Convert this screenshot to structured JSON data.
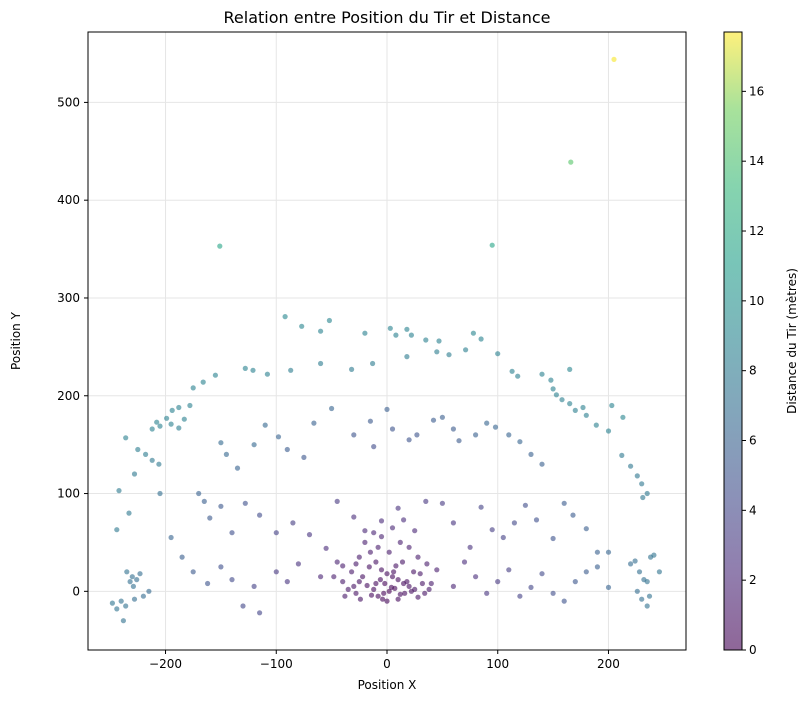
{
  "chart_data": {
    "type": "scatter",
    "title": "Relation entre Position du Tir et Distance",
    "xlabel": "Position X",
    "ylabel": "Position Y",
    "xlim": [
      -270,
      270
    ],
    "ylim": [
      -60,
      572
    ],
    "xticks": [
      -200,
      -100,
      0,
      100,
      200
    ],
    "yticks": [
      0,
      100,
      200,
      300,
      400,
      500
    ],
    "grid": true,
    "colormap": "viridis",
    "colorbar": {
      "label": "Distance du Tir (mètres)",
      "range": [
        0,
        17.7
      ],
      "ticks": [
        0,
        2,
        4,
        6,
        8,
        10,
        12,
        14,
        16
      ]
    },
    "point_alpha": 0.6,
    "points": [
      [
        205,
        544
      ],
      [
        166,
        439
      ],
      [
        95,
        354
      ],
      [
        -151,
        353
      ],
      [
        -92,
        281
      ],
      [
        -52,
        277
      ],
      [
        -77,
        271
      ],
      [
        -60,
        266
      ],
      [
        -20,
        264
      ],
      [
        3,
        269
      ],
      [
        8,
        262
      ],
      [
        18,
        268
      ],
      [
        22,
        262
      ],
      [
        35,
        257
      ],
      [
        47,
        256
      ],
      [
        78,
        264
      ],
      [
        85,
        258
      ],
      [
        -128,
        228
      ],
      [
        -121,
        226
      ],
      [
        -108,
        222
      ],
      [
        -87,
        226
      ],
      [
        -60,
        233
      ],
      [
        -32,
        227
      ],
      [
        -13,
        233
      ],
      [
        18,
        240
      ],
      [
        45,
        245
      ],
      [
        56,
        242
      ],
      [
        71,
        247
      ],
      [
        100,
        243
      ],
      [
        113,
        225
      ],
      [
        118,
        220
      ],
      [
        140,
        222
      ],
      [
        148,
        216
      ],
      [
        165,
        227
      ],
      [
        -155,
        221
      ],
      [
        -166,
        214
      ],
      [
        -175,
        208
      ],
      [
        -178,
        190
      ],
      [
        -188,
        188
      ],
      [
        -194,
        185
      ],
      [
        -183,
        176
      ],
      [
        -195,
        171
      ],
      [
        -199,
        177
      ],
      [
        -205,
        169
      ],
      [
        -208,
        173
      ],
      [
        -212,
        166
      ],
      [
        -188,
        167
      ],
      [
        150,
        207
      ],
      [
        153,
        201
      ],
      [
        158,
        196
      ],
      [
        165,
        192
      ],
      [
        170,
        185
      ],
      [
        177,
        188
      ],
      [
        180,
        180
      ],
      [
        189,
        170
      ],
      [
        200,
        164
      ],
      [
        203,
        190
      ],
      [
        213,
        178
      ],
      [
        -225,
        145
      ],
      [
        -218,
        140
      ],
      [
        -212,
        134
      ],
      [
        -206,
        130
      ],
      [
        -236,
        157
      ],
      [
        -242,
        103
      ],
      [
        -228,
        120
      ],
      [
        -233,
        80
      ],
      [
        -244,
        63
      ],
      [
        212,
        139
      ],
      [
        220,
        128
      ],
      [
        226,
        118
      ],
      [
        230,
        110
      ],
      [
        235,
        100
      ],
      [
        231,
        96
      ],
      [
        -150,
        152
      ],
      [
        -145,
        140
      ],
      [
        -135,
        126
      ],
      [
        -120,
        150
      ],
      [
        -110,
        170
      ],
      [
        -98,
        158
      ],
      [
        -90,
        145
      ],
      [
        -75,
        137
      ],
      [
        -66,
        172
      ],
      [
        -50,
        187
      ],
      [
        -30,
        160
      ],
      [
        -15,
        174
      ],
      [
        -12,
        148
      ],
      [
        0,
        186
      ],
      [
        5,
        166
      ],
      [
        20,
        155
      ],
      [
        27,
        160
      ],
      [
        42,
        175
      ],
      [
        50,
        178
      ],
      [
        60,
        166
      ],
      [
        65,
        154
      ],
      [
        80,
        160
      ],
      [
        90,
        172
      ],
      [
        98,
        168
      ],
      [
        110,
        160
      ],
      [
        120,
        153
      ],
      [
        130,
        140
      ],
      [
        140,
        130
      ],
      [
        -170,
        100
      ],
      [
        -165,
        92
      ],
      [
        -160,
        75
      ],
      [
        -150,
        87
      ],
      [
        -140,
        60
      ],
      [
        -128,
        90
      ],
      [
        -115,
        78
      ],
      [
        -100,
        60
      ],
      [
        -85,
        70
      ],
      [
        -70,
        58
      ],
      [
        -55,
        44
      ],
      [
        -45,
        92
      ],
      [
        -30,
        76
      ],
      [
        -20,
        62
      ],
      [
        -5,
        56
      ],
      [
        10,
        85
      ],
      [
        15,
        73
      ],
      [
        25,
        62
      ],
      [
        35,
        92
      ],
      [
        50,
        90
      ],
      [
        60,
        70
      ],
      [
        75,
        45
      ],
      [
        85,
        86
      ],
      [
        95,
        63
      ],
      [
        105,
        55
      ],
      [
        115,
        70
      ],
      [
        125,
        88
      ],
      [
        135,
        73
      ],
      [
        150,
        54
      ],
      [
        160,
        90
      ],
      [
        168,
        78
      ],
      [
        180,
        64
      ],
      [
        190,
        40
      ],
      [
        200,
        40
      ],
      [
        -205,
        100
      ],
      [
        -195,
        55
      ],
      [
        -185,
        35
      ],
      [
        -175,
        20
      ],
      [
        -162,
        8
      ],
      [
        -150,
        25
      ],
      [
        -140,
        12
      ],
      [
        -130,
        -15
      ],
      [
        -120,
        5
      ],
      [
        -115,
        -22
      ],
      [
        -100,
        20
      ],
      [
        -90,
        10
      ],
      [
        -80,
        28
      ],
      [
        -60,
        15
      ],
      [
        -40,
        26
      ],
      [
        -25,
        35
      ],
      [
        170,
        10
      ],
      [
        180,
        20
      ],
      [
        190,
        25
      ],
      [
        200,
        4
      ],
      [
        160,
        -10
      ],
      [
        150,
        -2
      ],
      [
        140,
        18
      ],
      [
        130,
        4
      ],
      [
        120,
        -5
      ],
      [
        110,
        22
      ],
      [
        100,
        10
      ],
      [
        90,
        -2
      ],
      [
        80,
        15
      ],
      [
        70,
        30
      ],
      [
        60,
        5
      ],
      [
        45,
        22
      ],
      [
        40,
        8
      ],
      [
        -235,
        20
      ],
      [
        -232,
        10
      ],
      [
        -230,
        15
      ],
      [
        -226,
        12
      ],
      [
        -223,
        18
      ],
      [
        -229,
        5
      ],
      [
        -236,
        -15
      ],
      [
        -240,
        -10
      ],
      [
        -238,
        -30
      ],
      [
        -220,
        -5
      ],
      [
        -228,
        -8
      ],
      [
        -244,
        -18
      ],
      [
        -248,
        -12
      ],
      [
        -215,
        0
      ],
      [
        220,
        28
      ],
      [
        224,
        31
      ],
      [
        228,
        20
      ],
      [
        232,
        12
      ],
      [
        230,
        -8
      ],
      [
        235,
        -15
      ],
      [
        238,
        35
      ],
      [
        241,
        37
      ],
      [
        246,
        20
      ],
      [
        226,
        0
      ],
      [
        235,
        10
      ],
      [
        237,
        -5
      ],
      [
        -20,
        50
      ],
      [
        -15,
        40
      ],
      [
        -10,
        30
      ],
      [
        -5,
        22
      ],
      [
        0,
        18
      ],
      [
        5,
        15
      ],
      [
        10,
        12
      ],
      [
        15,
        8
      ],
      [
        20,
        5
      ],
      [
        25,
        2
      ],
      [
        -25,
        10
      ],
      [
        -30,
        5
      ],
      [
        -35,
        2
      ],
      [
        -28,
        -2
      ],
      [
        -22,
        15
      ],
      [
        -18,
        6
      ],
      [
        -12,
        2
      ],
      [
        -8,
        -5
      ],
      [
        -3,
        -2
      ],
      [
        2,
        0
      ],
      [
        7,
        3
      ],
      [
        12,
        -3
      ],
      [
        18,
        10
      ],
      [
        22,
        0
      ],
      [
        28,
        -6
      ],
      [
        32,
        8
      ],
      [
        38,
        2
      ],
      [
        -40,
        10
      ],
      [
        -45,
        30
      ],
      [
        -48,
        15
      ],
      [
        -12,
        60
      ],
      [
        -5,
        72
      ],
      [
        5,
        65
      ],
      [
        12,
        50
      ],
      [
        20,
        45
      ],
      [
        28,
        35
      ],
      [
        -28,
        28
      ],
      [
        -8,
        45
      ],
      [
        2,
        40
      ],
      [
        8,
        26
      ],
      [
        14,
        30
      ],
      [
        -16,
        25
      ],
      [
        -2,
        8
      ],
      [
        4,
        4
      ],
      [
        10,
        -8
      ],
      [
        -6,
        12
      ],
      [
        -14,
        -4
      ],
      [
        24,
        20
      ],
      [
        30,
        18
      ],
      [
        36,
        28
      ],
      [
        -32,
        20
      ],
      [
        -38,
        -5
      ],
      [
        16,
        -2
      ],
      [
        0,
        -10
      ],
      [
        -10,
        8
      ],
      [
        6,
        20
      ],
      [
        -4,
        -8
      ],
      [
        34,
        -2
      ],
      [
        -24,
        -8
      ]
    ],
    "values": [
      17.6,
      14.5,
      11.6,
      11.6,
      9.2,
      9.0,
      8.9,
      8.8,
      8.6,
      8.8,
      8.6,
      8.8,
      8.6,
      8.5,
      8.6,
      8.9,
      8.8,
      8.7,
      8.6,
      8.5,
      8.3,
      8.2,
      8.0,
      8.1,
      8.2,
      8.3,
      8.3,
      8.4,
      8.5,
      8.5,
      8.4,
      8.6,
      8.5,
      8.9,
      8.8,
      8.7,
      8.6,
      8.5,
      8.6,
      8.6,
      8.5,
      8.5,
      8.6,
      8.6,
      8.7,
      8.6,
      8.3,
      8.5,
      8.5,
      8.4,
      8.5,
      8.4,
      8.5,
      8.4,
      8.5,
      8.6,
      8.8,
      8.9,
      8.3,
      8.1,
      7.9,
      7.9,
      8.5,
      8.0,
      7.9,
      7.8,
      7.9,
      7.8,
      7.7,
      7.7,
      7.7,
      7.8,
      7.7,
      6.6,
      6.4,
      6.1,
      6.4,
      6.5,
      6.1,
      5.6,
      5.2,
      6.0,
      6.2,
      5.1,
      5.4,
      4.5,
      5.7,
      5.1,
      4.9,
      5.1,
      5.6,
      5.7,
      5.5,
      5.5,
      5.9,
      6.2,
      6.2,
      6.1,
      6.2,
      5.9,
      5.9,
      6.0,
      5.8,
      5.4,
      5.3,
      4.7,
      4.8,
      4.4,
      3.7,
      3.4,
      2.8,
      2.2,
      3.1,
      2.5,
      2.0,
      1.7,
      2.6,
      2.3,
      2.0,
      3.0,
      3.2,
      2.8,
      2.7,
      3.8,
      3.5,
      3.7,
      4.2,
      4.6,
      4.7,
      4.9,
      5.6,
      5.6,
      5.7,
      5.9,
      6.2,
      7.0,
      6.2,
      5.8,
      5.4,
      5.0,
      4.7,
      4.3,
      4.1,
      3.7,
      3.9,
      3.1,
      2.8,
      2.6,
      1.9,
      1.5,
      1.3,
      5.2,
      5.5,
      5.8,
      6.1,
      4.9,
      4.6,
      4.3,
      4.0,
      3.7,
      3.4,
      3.1,
      2.8,
      2.5,
      2.3,
      1.9,
      1.5,
      1.3,
      7.2,
      7.1,
      7.0,
      6.9,
      6.8,
      7.0,
      7.2,
      7.3,
      7.3,
      6.7,
      6.9,
      7.5,
      7.6,
      6.6,
      6.7,
      6.8,
      7.0,
      7.1,
      7.1,
      7.2,
      7.3,
      7.4,
      7.5,
      6.9,
      7.2,
      7.2,
      1.6,
      1.3,
      0.9,
      0.6,
      0.5,
      0.5,
      0.5,
      0.5,
      0.6,
      0.8,
      0.8,
      0.9,
      1.1,
      0.9,
      0.8,
      0.6,
      0.4,
      0.3,
      0.1,
      0.0,
      0.2,
      0.4,
      0.6,
      0.7,
      0.9,
      1.0,
      1.2,
      1.3,
      1.7,
      1.5,
      1.9,
      2.2,
      2.0,
      1.6,
      1.5,
      1.4,
      1.2,
      1.4,
      1.3,
      0.9,
      1.0,
      0.7,
      0.1,
      0.2,
      0.4,
      0.4,
      0.4,
      0.9,
      1.1,
      1.4,
      1.2,
      1.2,
      0.5,
      0.3,
      0.4,
      0.6,
      0.3,
      1.0,
      0.8
    ]
  }
}
